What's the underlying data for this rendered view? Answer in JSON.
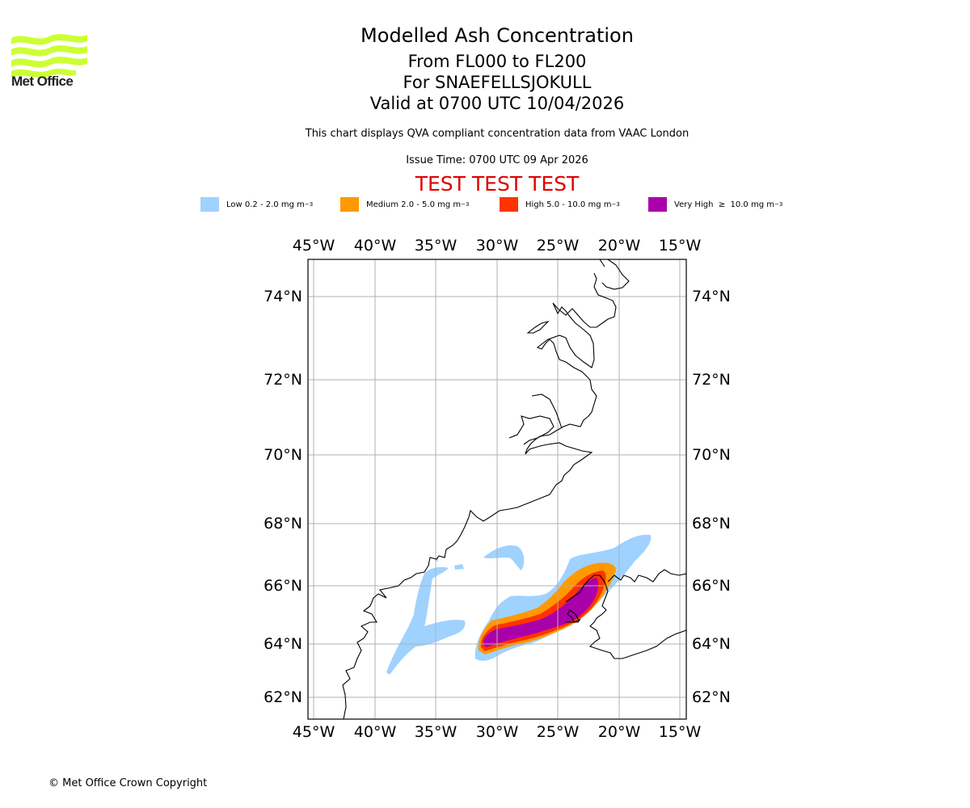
{
  "logo": {
    "text": "Met Office",
    "color": "#ccff33"
  },
  "header": {
    "title": "Modelled Ash Concentration",
    "levels": "From FL000 to FL200",
    "volcano": "For SNAEFELLSJOKULL",
    "valid": "Valid at 0700 UTC 10/04/2026",
    "subtitle": "This chart displays QVA compliant concentration data from VAAC London",
    "issue_time": "Issue Time: 0700 UTC 09 Apr 2026",
    "test_banner": "TEST TEST TEST",
    "test_color": "#e00000"
  },
  "legend": [
    {
      "label": "Low 0.2 - 2.0 mg m",
      "exp": "−3",
      "color": "#a0d2ff"
    },
    {
      "label": "Medium 2.0 - 5.0 mg m",
      "exp": "−3",
      "color": "#ff9900"
    },
    {
      "label": "High 5.0 - 10.0 mg m",
      "exp": "−3",
      "color": "#ff3300"
    },
    {
      "label": "Very High  ≥  10.0 mg m",
      "exp": "−3",
      "color": "#aa00aa"
    }
  ],
  "map": {
    "lon_ticks": [
      "45°W",
      "40°W",
      "35°W",
      "30°W",
      "25°W",
      "20°W",
      "15°W"
    ],
    "lat_ticks": [
      "74°N",
      "72°N",
      "70°N",
      "68°N",
      "66°N",
      "64°N",
      "62°N"
    ],
    "extent": {
      "lon_min": -45.5,
      "lon_max": -14.5,
      "lat_min": 61.4,
      "lat_max": 74.9
    },
    "grid_color": "#b0b0b0"
  },
  "footer": {
    "copyright": "© Met Office Crown Copyright"
  }
}
